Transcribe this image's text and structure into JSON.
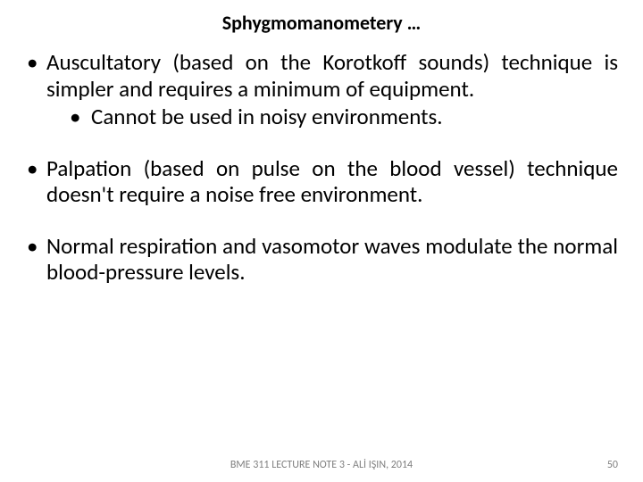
{
  "title": "Sphygmomanometery …",
  "bullets": {
    "b1": "Auscultatory (based on the Korotkoff sounds) technique is simpler and requires a minimum of equipment.",
    "b1a": "Cannot be used in noisy environments.",
    "b2": "Palpation (based on pulse on the blood vessel) technique doesn't require a noise free environment.",
    "b3": "Normal respiration and vasomotor waves modulate the normal blood-pressure levels."
  },
  "footer": "BME 311 LECTURE NOTE 3 - ALİ IŞIN, 2014",
  "page": "50",
  "colors": {
    "text": "#000000",
    "footer": "#7f7f7f",
    "background": "#ffffff"
  },
  "typography": {
    "title_fontsize": 22,
    "body_fontsize": 25,
    "footer_fontsize": 12,
    "title_weight": 700
  }
}
